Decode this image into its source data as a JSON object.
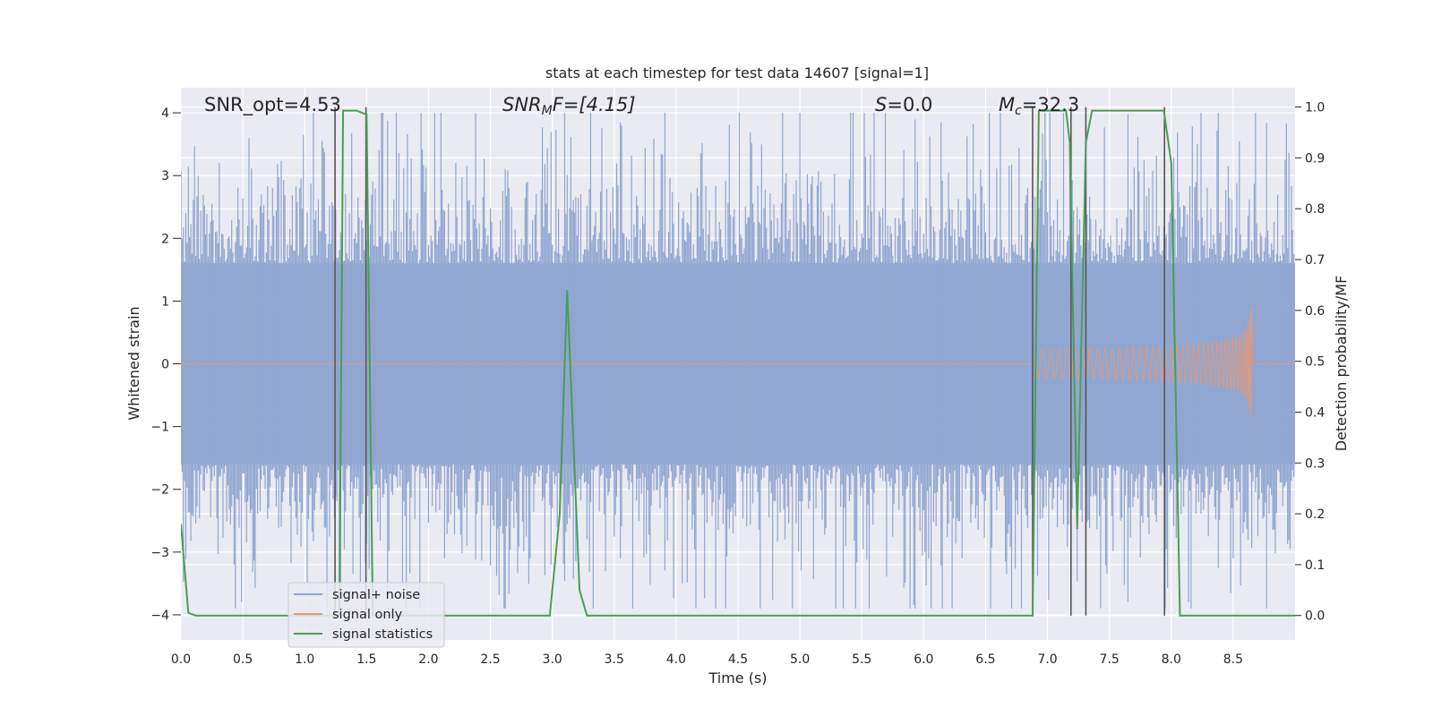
{
  "chart_data": {
    "type": "line",
    "title": "stats at each timestep for test data 14607 [signal=1]",
    "xlabel": "Time (s)",
    "ylabel": "Whitened strain",
    "y2label": "Detection probability/MF",
    "xlim": [
      0.0,
      9.0
    ],
    "ylim": [
      -4.4,
      4.4
    ],
    "y2lim": [
      -0.048,
      1.038
    ],
    "xticks": [
      "0.0",
      "0.5",
      "1.0",
      "1.5",
      "2.0",
      "2.5",
      "3.0",
      "3.5",
      "4.0",
      "4.5",
      "5.0",
      "5.5",
      "6.0",
      "6.5",
      "7.0",
      "7.5",
      "8.0",
      "8.5"
    ],
    "yticks": [
      "4",
      "3",
      "2",
      "1",
      "0",
      "−1",
      "−2",
      "−3",
      "−4"
    ],
    "y2ticks": [
      "1.0",
      "0.9",
      "0.8",
      "0.7",
      "0.6",
      "0.5",
      "0.4",
      "0.3",
      "0.2",
      "0.1",
      "0.0"
    ],
    "grid": true,
    "legend_position": "lower-left",
    "annotations": {
      "snr_opt": "SNR_opt=4.53",
      "snr_mf_main": "SNR",
      "snr_mf_sub": "M",
      "snr_mf_rest": "F=[4.15]",
      "s_main": "S",
      "s_rest": "=0.0",
      "mc_main": "M",
      "mc_sub": "c",
      "mc_rest": "=32.3"
    },
    "series": [
      {
        "name": "signal+ noise",
        "color": "#8fa6d0",
        "description_type": "noise",
        "amplitude_envelope": {
          "typical": 1.6,
          "peak_max": 4.0,
          "peak_min": -3.9
        }
      },
      {
        "name": "signal only",
        "color": "#dd9a82",
        "description_type": "chirp",
        "chirp_start": 6.9,
        "merger_time": 8.65,
        "merger_amplitude": 1.05
      },
      {
        "name": "signal statistics",
        "color": "#4a9e57",
        "axis": "right",
        "x": [
          0.0,
          0.06,
          0.12,
          1.25,
          1.28,
          1.31,
          1.42,
          1.5,
          1.55,
          1.6,
          2.98,
          3.06,
          3.12,
          3.22,
          3.28,
          6.87,
          6.88,
          6.93,
          7.15,
          7.18,
          7.24,
          7.31,
          7.36,
          7.94,
          8.0,
          8.07,
          8.1,
          9.0
        ],
        "y": [
          0.18,
          0.005,
          0.0,
          0.0,
          0.0,
          0.993,
          0.993,
          0.985,
          0.0,
          0.0,
          0.0,
          0.2,
          0.64,
          0.05,
          0.0,
          0.0,
          0.0,
          0.993,
          0.993,
          0.93,
          0.17,
          0.93,
          0.993,
          0.993,
          0.89,
          0.0,
          0.0,
          0.0
        ]
      }
    ],
    "vertical_lines_x": [
      1.245,
      1.495,
      6.88,
      7.19,
      7.31,
      7.945
    ],
    "vertical_lines_color": "#555555"
  }
}
